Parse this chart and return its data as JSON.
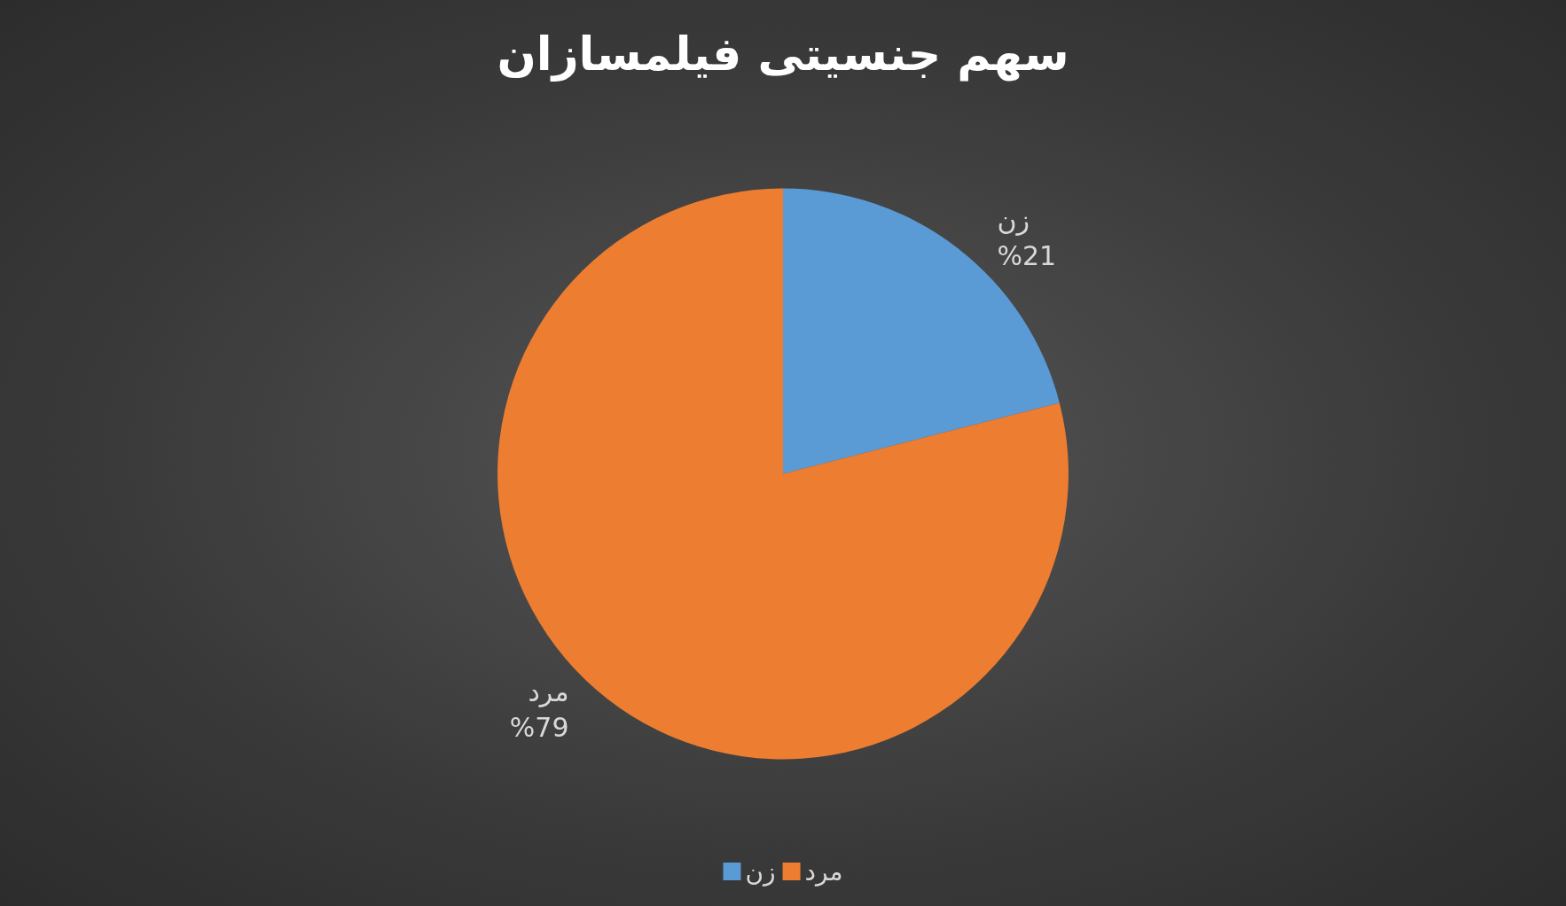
{
  "chart_data": {
    "type": "pie",
    "title": "سهم جنسیتی فیلمسازان",
    "categories": [
      "زن",
      "مرد"
    ],
    "values": [
      21,
      79
    ],
    "colors": [
      "#5b9bd5",
      "#ed7d31"
    ],
    "value_labels": [
      "%21",
      "%79"
    ],
    "legend": "bottom"
  }
}
